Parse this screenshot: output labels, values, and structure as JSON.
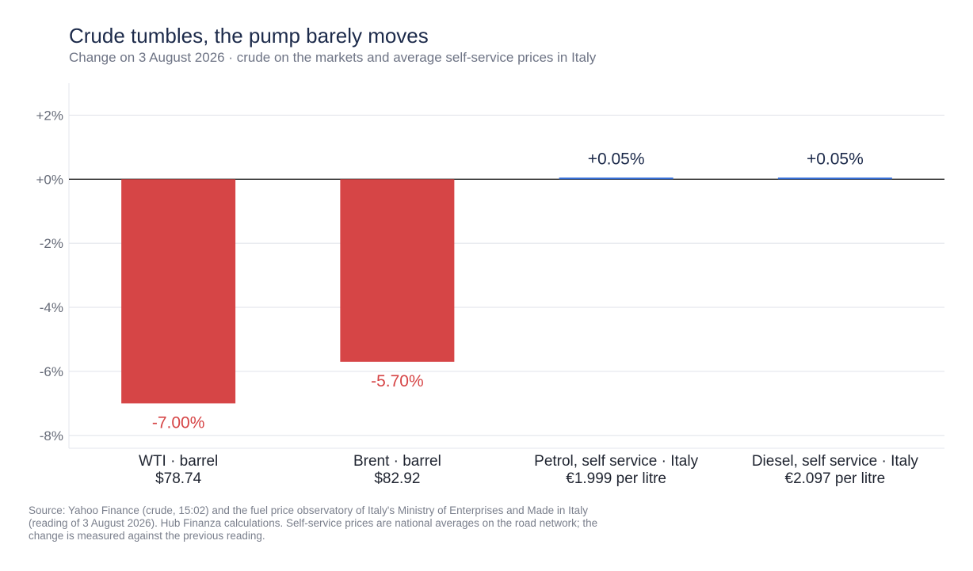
{
  "title": "Crude tumbles, the pump barely moves",
  "subtitle": "Change on 3 August 2026 · crude on the markets and average self-service prices in Italy",
  "source": "Source: Yahoo Finance (crude, 15:02) and the fuel price observatory of Italy's Ministry of Enterprises and Made in Italy (reading of 3 August 2026). Hub Finanza calculations. Self-service prices are national averages on the road network; the change is measured against the previous reading.",
  "colors": {
    "negative": "#d64546",
    "positive": "#2f6ad6",
    "axis": "#222222",
    "grid": "#e3e5ec"
  },
  "chart_data": {
    "type": "bar",
    "ylim": [
      -8.4,
      3.0
    ],
    "yticks": [
      2,
      0,
      -2,
      -4,
      -6,
      -8
    ],
    "ytick_labels": [
      "+2%",
      "+0%",
      "-2%",
      "-4%",
      "-6%",
      "-8%"
    ],
    "grid": true,
    "categories": [
      {
        "name": "WTI · barrel",
        "price": "$78.74"
      },
      {
        "name": "Brent · barrel",
        "price": "$82.92"
      },
      {
        "name": "Petrol, self service · Italy",
        "price": "€1.999 per litre"
      },
      {
        "name": "Diesel, self service · Italy",
        "price": "€2.097 per litre"
      }
    ],
    "values": [
      -7.0,
      -5.7,
      0.05,
      0.05
    ],
    "value_labels": [
      "-7.00%",
      "-5.70%",
      "+0.05%",
      "+0.05%"
    ]
  }
}
